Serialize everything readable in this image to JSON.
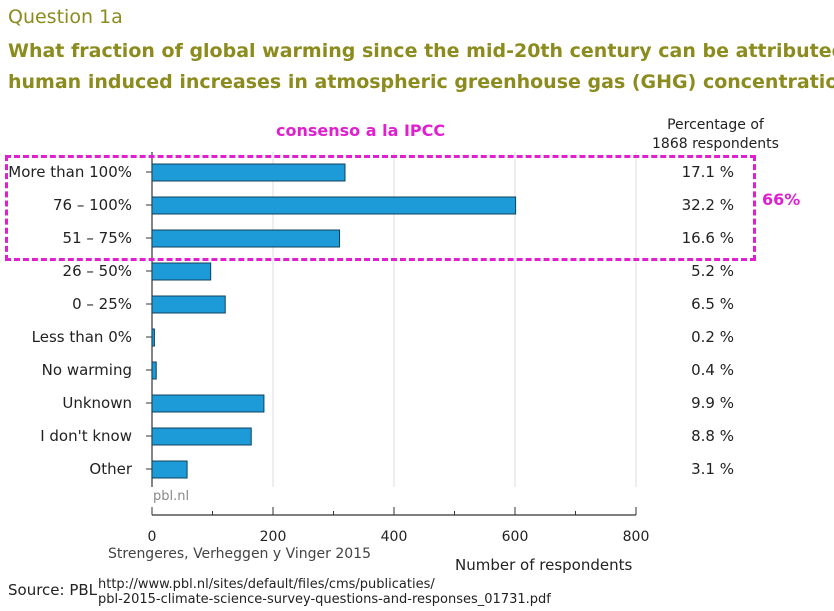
{
  "header": {
    "question": "Question 1a",
    "title_line1": "What fraction of global warming since the mid-20th century can be attributed to",
    "title_line2": "human induced increases in atmospheric greenhouse gas (GHG) concentrations?"
  },
  "annotations": {
    "consensus": "consenso a la IPCC",
    "consensus_pct": "66%",
    "authors": "Strengeres, Verheggen y Vinger 2015",
    "watermark": "pbl.nl"
  },
  "source": {
    "label": "Source: PBL",
    "url_line1": "http://www.pbl.nl/sites/default/files/cms/publicaties/",
    "url_line2": "pbl-2015-climate-science-survey-questions-and-responses_01731.pdf"
  },
  "colors": {
    "bar": "#1c9bd8",
    "accent": "#e020d0",
    "title": "#8b8b1e"
  },
  "chart_data": {
    "type": "bar",
    "orientation": "horizontal",
    "title": "What fraction of global warming since the mid-20th century can be attributed to human induced increases in atmospheric greenhouse gas (GHG) concentrations?",
    "xlabel": "Number of respondents",
    "xlim": [
      0,
      800
    ],
    "xticks": [
      "0",
      "200",
      "400",
      "600",
      "800"
    ],
    "right_header_line1": "Percentage of",
    "right_header_line2": "1868 respondents",
    "categories": [
      "More than 100%",
      "76 – 100%",
      "51 – 75%",
      "26 – 50%",
      "0 – 25%",
      "Less than 0%",
      "No warming",
      "Unknown",
      "I don't know",
      "Other"
    ],
    "values": [
      319,
      601,
      310,
      97,
      121,
      4,
      7,
      185,
      164,
      58
    ],
    "percentages": [
      "17.1 %",
      "32.2 %",
      "16.6 %",
      "5.2 %",
      "6.5 %",
      "0.2 %",
      "0.4 %",
      "9.9 %",
      "8.8 %",
      "3.1 %"
    ],
    "grid": true
  }
}
